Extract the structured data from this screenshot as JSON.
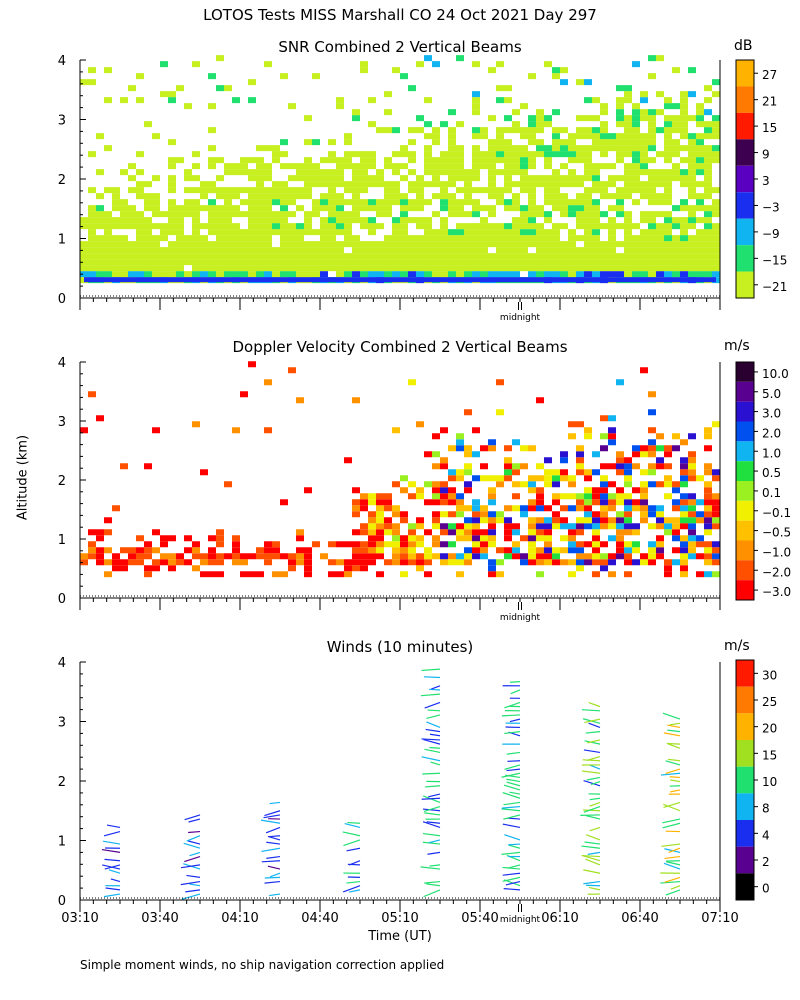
{
  "page_title": "LOTOS Tests MISS Marshall CO  24 Oct 2021 Day 297",
  "y_axis_label": "Altitude (km)",
  "footnote": "Simple moment winds, no ship navigation correction applied",
  "midnight_label": "midnight",
  "colors": {
    "axis": "#000000",
    "background": "#ffffff"
  },
  "chart_data": [
    {
      "type": "heatmap",
      "title": "SNR Combined 2 Vertical Beams",
      "unit": "dB",
      "ylabel": "Altitude (km)",
      "ylim": [
        0,
        4
      ],
      "yticks": [
        "0",
        "1",
        "2",
        "3",
        "4"
      ],
      "x_time_range": [
        "03:10",
        "07:10"
      ],
      "midnight_x": "05:55",
      "colorbar": {
        "labels": [
          "27",
          "21",
          "15",
          "9",
          "3",
          "−3",
          "−9",
          "−15",
          "−21"
        ],
        "colors": [
          "#ffb300",
          "#ff7a00",
          "#ff1a00",
          "#3d0050",
          "#5a00c0",
          "#1a2ef0",
          "#10b4f0",
          "#20e070",
          "#c8f020"
        ]
      },
      "note": "Signal fills 0.3–1.5 km throughout, strongest near 0.3 km; echoes rise to 2–3 km after 05:00 UT"
    },
    {
      "type": "heatmap",
      "title": "Doppler Velocity Combined 2 Vertical Beams",
      "unit": "m/s",
      "ylabel": "Altitude (km)",
      "ylim": [
        0,
        4
      ],
      "yticks": [
        "0",
        "1",
        "2",
        "3",
        "4"
      ],
      "x_time_range": [
        "03:10",
        "07:10"
      ],
      "midnight_x": "05:55",
      "colorbar": {
        "labels": [
          "10.0",
          "5.0",
          "3.0",
          "2.0",
          "1.0",
          "0.5",
          "0.1",
          "−0.1",
          "−0.5",
          "−1.0",
          "−2.0",
          "−3.0"
        ],
        "colors": [
          "#2a0030",
          "#5a0090",
          "#2a10d0",
          "#0050f0",
          "#10b4f0",
          "#20e040",
          "#9af020",
          "#f0f000",
          "#ffc000",
          "#ff9000",
          "#ff5000",
          "#ff0000"
        ]
      },
      "note": "Mostly downward (orange/red) velocities 0.5–2 km; mixed positive velocities 05:40–07:10 up to 3 km"
    },
    {
      "type": "scatter",
      "title": "Winds (10 minutes)",
      "unit": "m/s",
      "ylabel": "Altitude (km)",
      "xlabel": "Time (UT)",
      "ylim": [
        0,
        4
      ],
      "yticks": [
        "0",
        "1",
        "2",
        "3",
        "4"
      ],
      "xticks": [
        "03:10",
        "03:40",
        "04:10",
        "04:40",
        "05:10",
        "05:40",
        "06:10",
        "06:40",
        "07:10"
      ],
      "midnight_x": "05:55",
      "colorbar": {
        "labels": [
          "30",
          "25",
          "20",
          "15",
          "10",
          "8",
          "4",
          "2",
          "0"
        ],
        "colors": [
          "#ff1a00",
          "#ff7a00",
          "#ffb300",
          "#a0e020",
          "#20e070",
          "#10b4f0",
          "#1a2ef0",
          "#5a0090",
          "#000000"
        ]
      },
      "profiles": [
        {
          "time": "03:25",
          "top_km": 1.25,
          "max_speed": 10
        },
        {
          "time": "03:55",
          "top_km": 1.5,
          "max_speed": 10
        },
        {
          "time": "04:25",
          "top_km": 1.65,
          "max_speed": 10
        },
        {
          "time": "04:55",
          "top_km": 1.35,
          "max_speed": 15
        },
        {
          "time": "05:25",
          "top_km": 3.9,
          "max_speed": 15
        },
        {
          "time": "05:55",
          "top_km": 3.7,
          "max_speed": 15
        },
        {
          "time": "06:25",
          "top_km": 3.25,
          "max_speed": 20
        },
        {
          "time": "06:55",
          "top_km": 3.05,
          "max_speed": 25
        }
      ]
    }
  ]
}
